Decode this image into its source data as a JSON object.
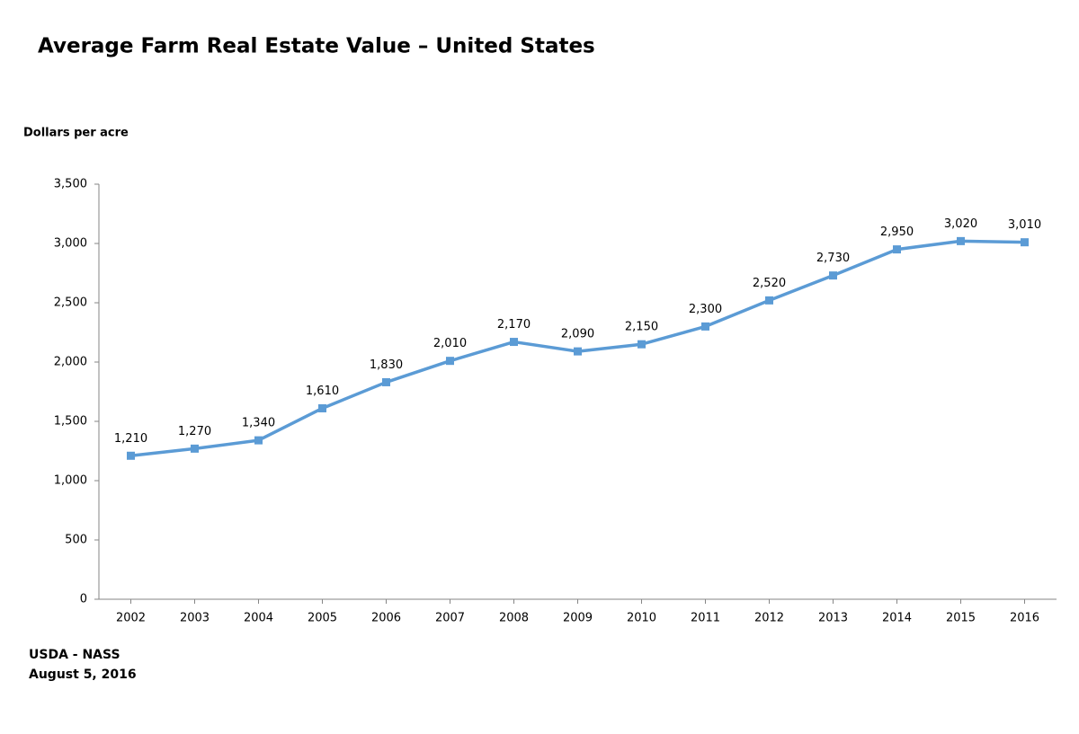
{
  "chart_data": {
    "type": "line",
    "title": "Average Farm Real Estate Value – United States",
    "y_label": "Dollars per acre",
    "source": [
      "USDA - NASS",
      "August 5, 2016"
    ],
    "categories": [
      "2002",
      "2003",
      "2004",
      "2005",
      "2006",
      "2007",
      "2008",
      "2009",
      "2010",
      "2011",
      "2012",
      "2013",
      "2014",
      "2015",
      "2016"
    ],
    "series": [
      {
        "color": "#5b9bd5",
        "values": [
          1210,
          1270,
          1340,
          1610,
          1830,
          2010,
          2170,
          2090,
          2150,
          2300,
          2520,
          2730,
          2950,
          3020,
          3010
        ],
        "value_labels": [
          "1,210",
          "1,270",
          "1,340",
          "1,610",
          "1,830",
          "2,010",
          "2,170",
          "2,090",
          "2,150",
          "2,300",
          "2,520",
          "2,730",
          "2,950",
          "3,020",
          "3,010"
        ]
      }
    ],
    "ylim": [
      0,
      3500
    ],
    "yticks": [
      0,
      500,
      {
        "value": 1000,
        "label": "1,000"
      },
      {
        "value": 1500,
        "label": "1,500"
      },
      {
        "value": 2000,
        "label": "2,000"
      },
      {
        "value": 2500,
        "label": "2,500"
      },
      {
        "value": 3000,
        "label": "3,000"
      },
      {
        "value": 3500,
        "label": "3,500"
      }
    ],
    "grid": false
  }
}
